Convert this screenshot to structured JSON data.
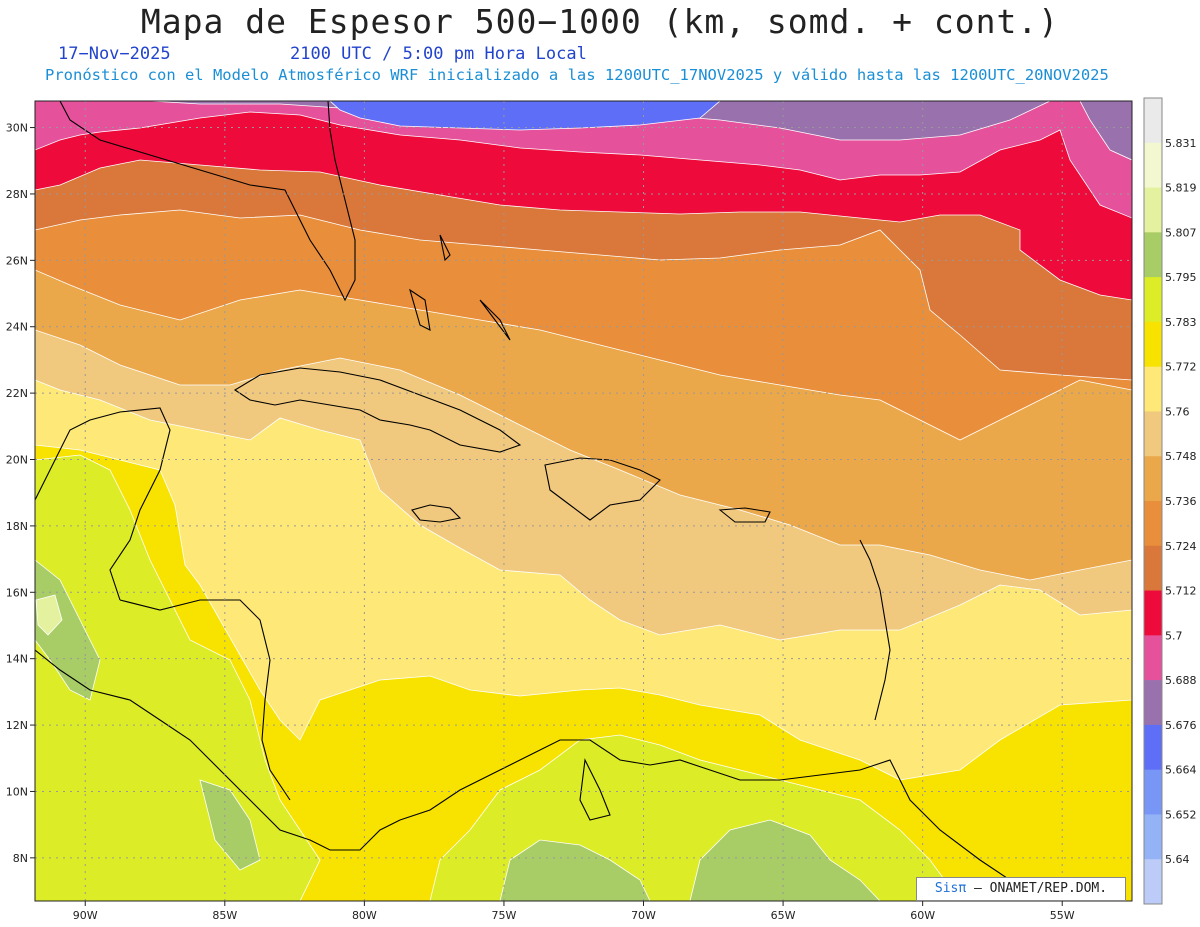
{
  "title": "Mapa de Espesor 500−1000 (km, somd. + cont.)",
  "date": "17−Nov−2025",
  "time": "2100 UTC / 5:00 pm Hora Local",
  "subtitle": "Pronóstico con el Modelo Atmosférico WRF inicializado a las 1200UTC_17NOV2025 y válido hasta las  1200UTC_20NOV2025",
  "credit": {
    "logo": "Sisπ",
    "text": "– ONAMET/REP.DOM."
  },
  "map": {
    "lon_labels": [
      "90W",
      "85W",
      "80W",
      "75W",
      "70W",
      "65W",
      "60W",
      "55W"
    ],
    "lat_labels": [
      "30N",
      "28N",
      "26N",
      "24N",
      "22N",
      "20N",
      "18N",
      "16N",
      "14N",
      "12N",
      "10N",
      "8N"
    ],
    "lon_values": [
      -90,
      -85,
      -80,
      -75,
      -70,
      -65,
      -60,
      -55
    ],
    "lat_values": [
      30,
      28,
      26,
      24,
      22,
      20,
      18,
      16,
      14,
      12,
      10,
      8
    ],
    "lon_range": [
      -91.8,
      -52.5
    ],
    "lat_range": [
      6.7,
      30.8
    ]
  },
  "colorbar": {
    "labels": [
      "5.831",
      "5.819",
      "5.807",
      "5.795",
      "5.783",
      "5.772",
      "5.76",
      "5.748",
      "5.736",
      "5.724",
      "5.712",
      "5.7",
      "5.688",
      "5.676",
      "5.664",
      "5.652",
      "5.64"
    ],
    "colors": [
      "#eaeaea",
      "#f4f8d0",
      "#e4f2a0",
      "#a8cc66",
      "#dcec26",
      "#f8e300",
      "#fde878",
      "#f0c87e",
      "#eba84a",
      "#e98e3a",
      "#d9783a",
      "#ee0a3a",
      "#e6519c",
      "#9972ad",
      "#5e6ef6",
      "#7896f6",
      "#94b2f6",
      "#bccbf8"
    ]
  },
  "contour_colors": {
    "c_5_676": "#9972ad",
    "c_5_688": "#e6519c",
    "c_5_700": "#ee0a3a",
    "c_5_712": "#d9783a",
    "c_5_724": "#e98e3a",
    "c_5_736": "#eba84a",
    "c_5_748": "#f0c87e",
    "c_5_760": "#fde878",
    "c_5_772": "#f8e300",
    "c_5_783": "#dcec26",
    "c_5_795": "#a8cc66",
    "c_5_664": "#5e6ef6"
  }
}
